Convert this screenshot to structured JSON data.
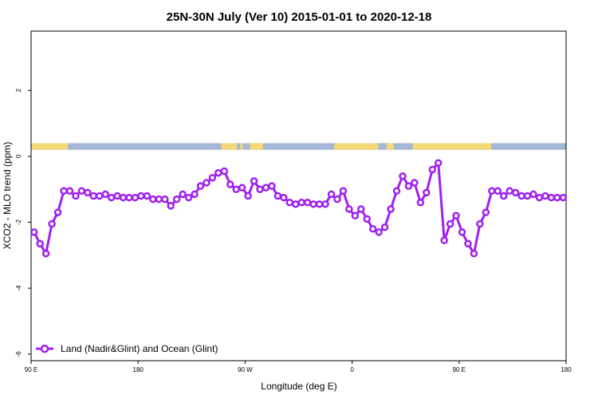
{
  "chart_data": {
    "type": "line",
    "title": "25N-30N July (Ver 10)   2015-01-01 to 2020-12-18",
    "xlabel": "Longitude (deg E)",
    "ylabel": "XCO2 - MLO trend (ppm)",
    "xlim": [
      90,
      540
    ],
    "ylim": [
      -6.2,
      3.8
    ],
    "x_ticks": [
      {
        "value": 90,
        "label": "90 E"
      },
      {
        "value": 180,
        "label": "180"
      },
      {
        "value": 270,
        "label": "90 W"
      },
      {
        "value": 360,
        "label": "0"
      },
      {
        "value": 450,
        "label": "90 E"
      },
      {
        "value": 540,
        "label": "180"
      }
    ],
    "y_ticks": [
      {
        "value": 2,
        "label": "2"
      },
      {
        "value": 0,
        "label": "0"
      },
      {
        "value": -2,
        "label": "-2"
      },
      {
        "value": -4,
        "label": "-4"
      },
      {
        "value": -6,
        "label": "-6"
      }
    ],
    "land_ocean_strip": {
      "y_range": [
        0.2,
        0.4
      ],
      "ocean_color": "#a4b8d6",
      "land_color": "#f4d97b",
      "land_segments": [
        [
          90,
          121
        ],
        [
          250,
          263
        ],
        [
          266,
          268
        ],
        [
          274,
          280
        ],
        [
          278,
          285
        ],
        [
          345,
          382
        ],
        [
          389,
          395
        ],
        [
          411,
          477
        ]
      ]
    },
    "series": [
      {
        "name": "Land (Nadir&Glint) and Ocean (Glint)",
        "color": "#a020f0",
        "x": [
          92.5,
          97.5,
          102.5,
          107.5,
          112.5,
          117.5,
          122.5,
          127.5,
          132.5,
          137.5,
          142.5,
          147.5,
          152.5,
          157.5,
          162.5,
          167.5,
          172.5,
          177.5,
          182.5,
          187.5,
          192.5,
          197.5,
          202.5,
          207.5,
          212.5,
          217.5,
          222.5,
          227.5,
          232.5,
          237.5,
          242.5,
          247.5,
          252.5,
          257.5,
          262.5,
          267.5,
          272.5,
          277.5,
          282.5,
          287.5,
          292.5,
          297.5,
          302.5,
          307.5,
          312.5,
          317.5,
          322.5,
          327.5,
          332.5,
          337.5,
          342.5,
          347.5,
          352.5,
          357.5,
          362.5,
          367.5,
          372.5,
          377.5,
          382.5,
          387.5,
          392.5,
          397.5,
          402.5,
          407.5,
          412.5,
          417.5,
          422.5,
          427.5,
          432.5,
          437.5,
          442.5,
          447.5,
          452.5,
          457.5,
          462.5,
          467.5,
          472.5,
          477.5,
          482.5,
          487.5,
          492.5,
          497.5,
          502.5,
          507.5,
          512.5,
          517.5,
          522.5,
          527.5,
          532.5,
          537.5
        ],
        "y": [
          -2.3,
          -2.65,
          -2.95,
          -2.05,
          -1.7,
          -1.05,
          -1.05,
          -1.2,
          -1.05,
          -1.1,
          -1.2,
          -1.2,
          -1.15,
          -1.25,
          -1.2,
          -1.25,
          -1.25,
          -1.25,
          -1.2,
          -1.2,
          -1.3,
          -1.3,
          -1.3,
          -1.5,
          -1.3,
          -1.15,
          -1.25,
          -1.15,
          -0.9,
          -0.8,
          -0.65,
          -0.5,
          -0.45,
          -0.85,
          -1.0,
          -0.95,
          -1.2,
          -0.75,
          -1.0,
          -0.95,
          -0.9,
          -1.2,
          -1.25,
          -1.4,
          -1.45,
          -1.4,
          -1.4,
          -1.45,
          -1.45,
          -1.45,
          -1.15,
          -1.3,
          -1.05,
          -1.6,
          -1.8,
          -1.6,
          -1.9,
          -2.2,
          -2.3,
          -2.15,
          -1.6,
          -1.05,
          -0.6,
          -0.9,
          -0.8,
          -1.4,
          -1.1,
          -0.4,
          -0.2,
          -2.55,
          -2.05,
          -1.8,
          -2.3,
          -2.65,
          -2.95,
          -2.05,
          -1.7,
          -1.05,
          -1.05,
          -1.2,
          -1.05,
          -1.1,
          -1.2,
          -1.2,
          -1.15,
          -1.25,
          -1.2,
          -1.25,
          -1.25,
          -1.25
        ]
      }
    ],
    "legend": {
      "position": "bottom-left"
    },
    "grid": false
  }
}
